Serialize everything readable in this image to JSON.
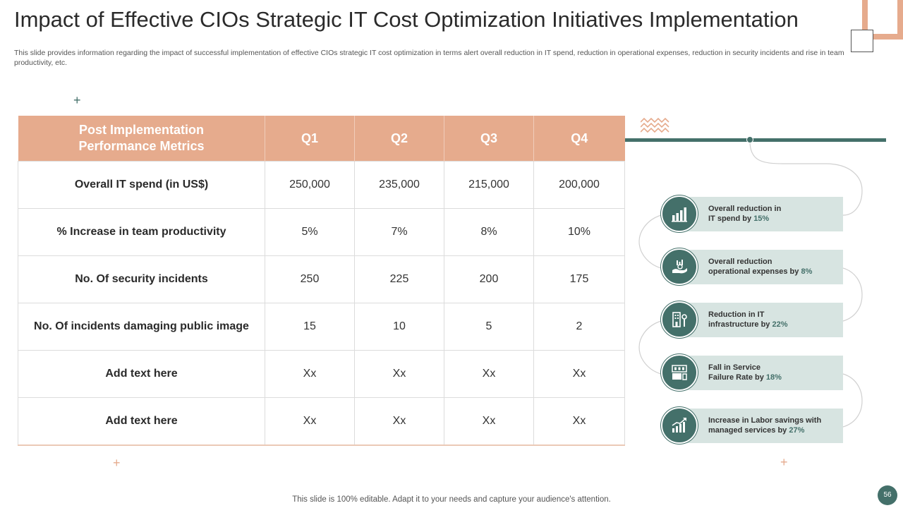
{
  "title": "Impact of Effective CIOs Strategic IT Cost Optimization Initiatives Implementation",
  "subtitle": "This slide provides information regarding the impact of successful implementation of effective CIOs strategic IT cost optimization in terms alert overall reduction in IT spend, reduction in operational expenses, reduction in security incidents and rise in team productivity, etc.",
  "decor": {
    "plus": "+"
  },
  "colors": {
    "accent_orange": "#e6ab8d",
    "accent_teal": "#44706a",
    "box_bg": "#d7e4e1"
  },
  "table": {
    "headers": [
      "Post Implementation Performance Metrics",
      "Q1",
      "Q2",
      "Q3",
      "Q4"
    ],
    "rows": [
      {
        "metric": "Overall IT spend (in US$)",
        "values": [
          "250,000",
          "235,000",
          "215,000",
          "200,000"
        ]
      },
      {
        "metric": "% Increase in team productivity",
        "values": [
          "5%",
          "7%",
          "8%",
          "10%"
        ]
      },
      {
        "metric": "No. Of security incidents",
        "values": [
          "250",
          "225",
          "200",
          "175"
        ]
      },
      {
        "metric": "No. Of incidents damaging public image",
        "values": [
          "15",
          "10",
          "5",
          "2"
        ]
      },
      {
        "metric": "Add text here",
        "values": [
          "Xx",
          "Xx",
          "Xx",
          "Xx"
        ]
      },
      {
        "metric": "Add text here",
        "values": [
          "Xx",
          "Xx",
          "Xx",
          "Xx"
        ]
      }
    ]
  },
  "stats": [
    {
      "line1": "Overall reduction in",
      "line2": "IT spend by",
      "pct": "15%",
      "icon": "bar-chart-icon"
    },
    {
      "line1": "Overall reduction",
      "line2": "operational expenses by",
      "pct": "8%",
      "icon": "hand-money-icon"
    },
    {
      "line1": "Reduction in IT",
      "line2": "infrastructure by",
      "pct": "22%",
      "icon": "infrastructure-icon"
    },
    {
      "line1": "Fall in Service",
      "line2": "Failure Rate by",
      "pct": "18%",
      "icon": "service-failure-icon"
    },
    {
      "line1": "Increase in Labor savings with",
      "line2": "managed services by",
      "pct": "27%",
      "icon": "growth-chart-icon"
    }
  ],
  "footer": "This slide is 100% editable. Adapt it to your needs and capture your audience's attention.",
  "page_number": "56"
}
